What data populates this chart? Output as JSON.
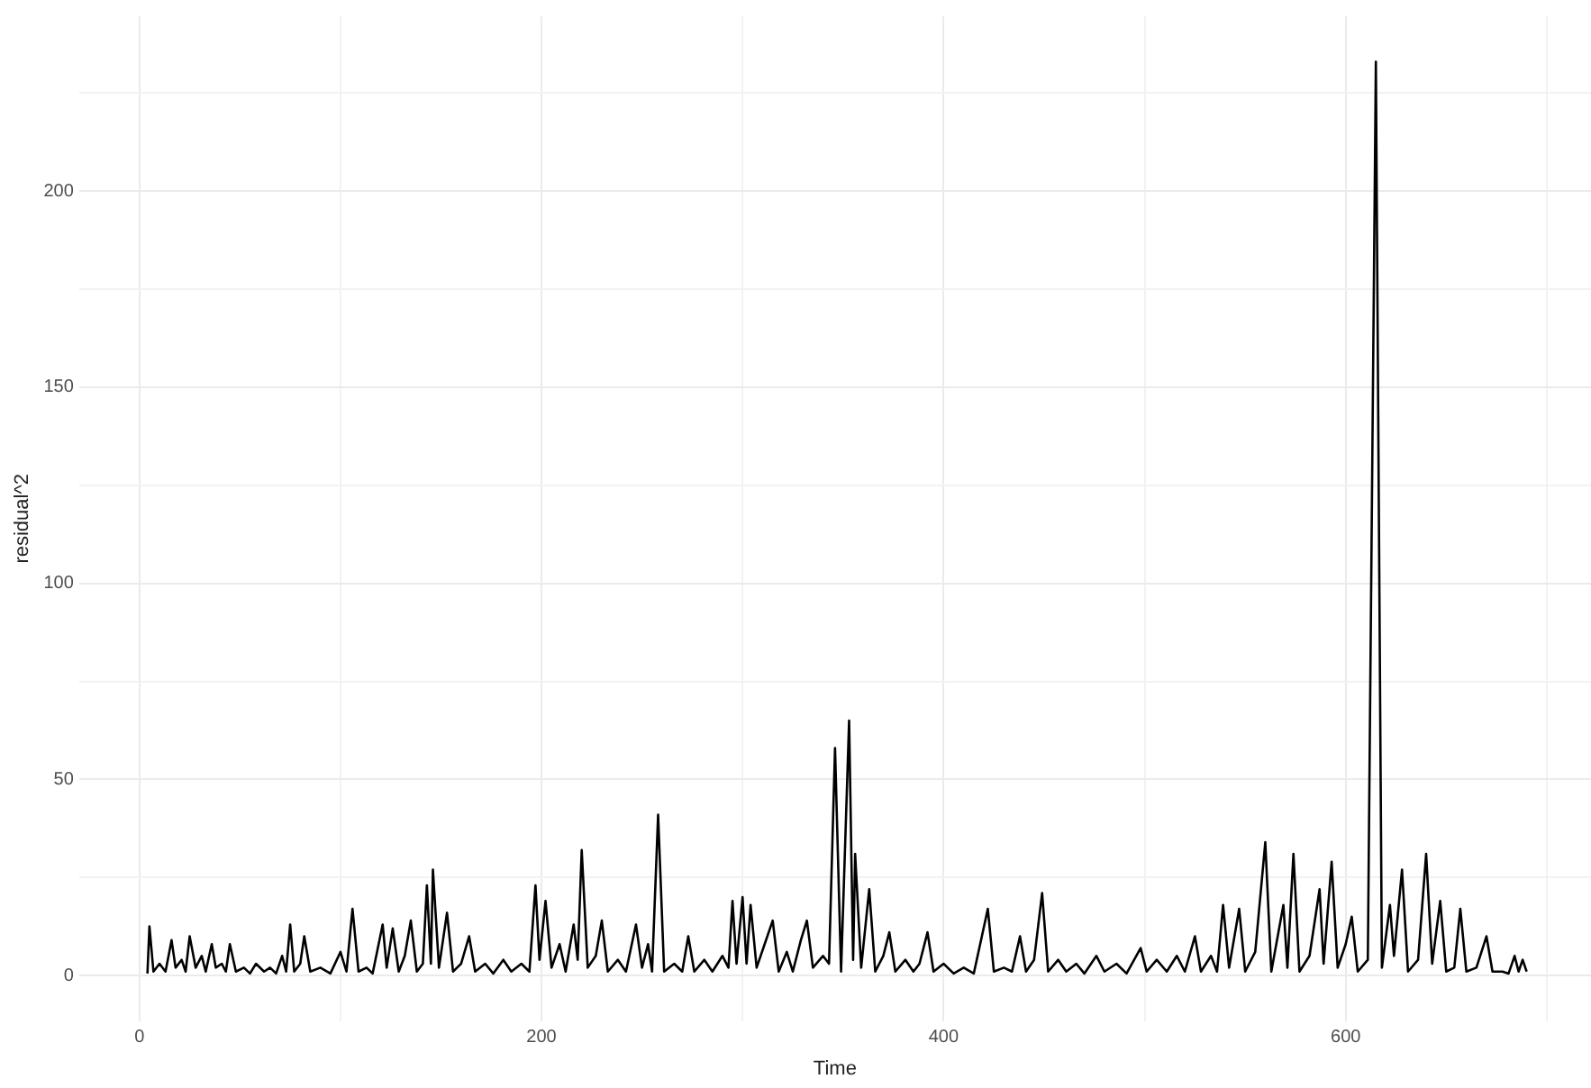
{
  "chart_data": {
    "type": "line",
    "xlabel": "Time",
    "ylabel": "residual^2",
    "xlim": [
      -30,
      722
    ],
    "ylim": [
      -11.6,
      244.6
    ],
    "xticks": [
      0,
      {
        "value": 100,
        "label": null
      },
      200,
      {
        "value": 300,
        "label": null
      },
      400,
      {
        "value": 500,
        "label": null
      },
      600,
      {
        "value": 700,
        "label": null
      }
    ],
    "yticks": [
      0,
      {
        "value": 25,
        "label": null
      },
      50,
      {
        "value": 75,
        "label": null
      },
      100,
      {
        "value": 125,
        "label": null
      },
      150,
      {
        "value": 175,
        "label": null
      },
      200,
      {
        "value": 225,
        "label": null
      }
    ],
    "grid": true,
    "legend": false,
    "marker": "none",
    "line_style": "solid",
    "series": [
      {
        "color": "#000000",
        "x": [
          4,
          5,
          7,
          10,
          13,
          16,
          18,
          21,
          23,
          25,
          28,
          31,
          33,
          36,
          38,
          41,
          43,
          45,
          48,
          52,
          55,
          58,
          62,
          65,
          68,
          71,
          73,
          75,
          77,
          80,
          82,
          85,
          90,
          95,
          100,
          103,
          106,
          109,
          113,
          116,
          121,
          123,
          126,
          129,
          132,
          135,
          138,
          141,
          143,
          145,
          146,
          149,
          153,
          156,
          160,
          164,
          167,
          172,
          176,
          181,
          185,
          190,
          194,
          197,
          199,
          202,
          205,
          209,
          212,
          216,
          218,
          220,
          223,
          227,
          230,
          233,
          238,
          242,
          247,
          250,
          253,
          255,
          258,
          261,
          266,
          270,
          273,
          276,
          281,
          285,
          290,
          293,
          295,
          297,
          300,
          302,
          304,
          307,
          311,
          315,
          318,
          322,
          325,
          329,
          332,
          335,
          340,
          343,
          346,
          349,
          353,
          355,
          356,
          359,
          363,
          366,
          370,
          373,
          376,
          381,
          385,
          388,
          392,
          395,
          400,
          405,
          410,
          415,
          422,
          425,
          430,
          434,
          438,
          441,
          445,
          449,
          452,
          457,
          461,
          466,
          470,
          476,
          480,
          486,
          491,
          498,
          501,
          506,
          511,
          516,
          520,
          525,
          528,
          533,
          536,
          539,
          542,
          547,
          550,
          555,
          560,
          563,
          569,
          571,
          574,
          577,
          582,
          587,
          589,
          593,
          596,
          600,
          603,
          606,
          611,
          615,
          618,
          622,
          624,
          628,
          631,
          636,
          640,
          643,
          647,
          650,
          654,
          657,
          660,
          665,
          670,
          673,
          678,
          681,
          684,
          686,
          688,
          690
        ],
        "values": [
          0.5,
          12.5,
          1,
          3,
          1,
          9,
          2,
          4,
          1,
          10,
          2,
          5,
          1,
          8,
          2,
          3,
          1,
          8,
          1,
          2,
          0.5,
          3,
          1,
          2,
          0.5,
          5,
          1,
          13,
          1,
          3,
          10,
          1,
          2,
          0.5,
          6,
          1,
          17,
          1,
          2,
          0.5,
          13,
          2,
          12,
          1,
          5,
          14,
          1,
          3,
          23,
          3,
          27,
          2,
          16,
          1,
          3,
          10,
          1,
          3,
          0.5,
          4,
          1,
          3,
          1,
          23,
          4,
          19,
          2,
          8,
          1,
          13,
          4,
          32,
          2,
          5,
          14,
          1,
          4,
          1,
          13,
          2,
          8,
          1,
          41,
          1,
          3,
          1,
          10,
          1,
          4,
          1,
          5,
          2,
          19,
          3,
          20,
          3,
          18,
          2,
          8,
          14,
          1,
          6,
          1,
          9,
          14,
          2,
          5,
          3,
          58,
          1,
          65,
          4,
          31,
          2,
          22,
          1,
          5,
          11,
          1,
          4,
          1,
          3,
          11,
          1,
          3,
          0.5,
          2,
          0.5,
          17,
          1,
          2,
          1,
          10,
          1,
          4,
          21,
          1,
          4,
          1,
          3,
          0.5,
          5,
          1,
          3,
          0.5,
          7,
          1,
          4,
          1,
          5,
          1,
          10,
          1,
          5,
          1,
          18,
          2,
          17,
          1,
          6,
          34,
          1,
          18,
          2,
          31,
          1,
          5,
          22,
          3,
          29,
          2,
          8,
          15,
          1,
          4,
          233,
          2,
          18,
          5,
          27,
          1,
          4,
          31,
          3,
          19,
          1,
          2,
          17,
          1,
          2,
          10,
          1,
          1,
          0.5,
          5,
          1,
          4,
          1
        ]
      }
    ]
  }
}
